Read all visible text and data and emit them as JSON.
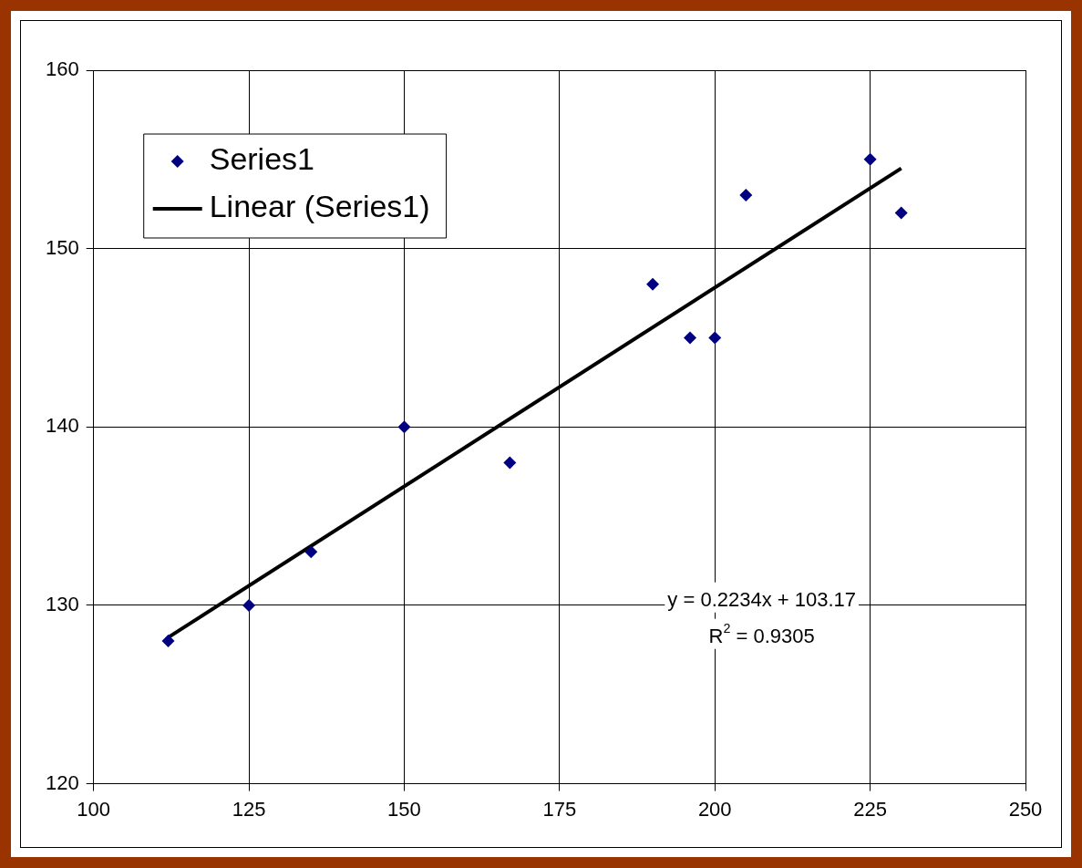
{
  "chart_data": {
    "type": "scatter",
    "x": [
      112,
      125,
      135,
      150,
      167,
      190,
      196,
      200,
      205,
      225,
      230
    ],
    "series": [
      {
        "name": "Series1",
        "color": "#000080",
        "marker": "diamond",
        "values": [
          128,
          130,
          133,
          140,
          138,
          148,
          145,
          145,
          153,
          155,
          152
        ]
      },
      {
        "name": "Linear (Series1)",
        "type": "line",
        "color": "#000000",
        "x": [
          112,
          230
        ],
        "values": [
          128.2,
          154.5
        ]
      }
    ],
    "xlim": [
      100,
      250
    ],
    "xticks": [
      100,
      125,
      150,
      175,
      200,
      225,
      250
    ],
    "ylim": [
      120,
      160
    ],
    "yticks": [
      120,
      130,
      140,
      150,
      160
    ],
    "grid": true,
    "legend": "top left",
    "annotations": [
      "y = 0.2234x + 103.17",
      "R$^{2}$ = 0.9305"
    ]
  }
}
